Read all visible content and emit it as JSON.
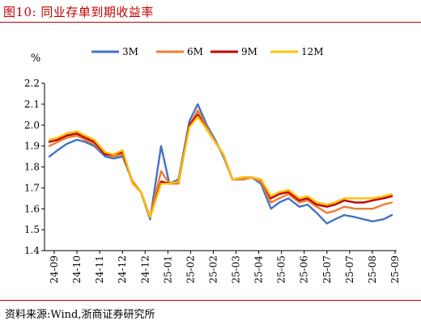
{
  "figure": {
    "title": "图10:  同业存单到期收益率",
    "source": "资料来源:Wind,浙商证券研究所"
  },
  "chart_data": {
    "type": "line",
    "title": "",
    "xlabel": "",
    "ylabel": "%",
    "ylim": [
      1.4,
      2.2
    ],
    "yticks": [
      "1.4",
      "1.5",
      "1.6",
      "1.7",
      "1.8",
      "1.9",
      "2.0",
      "2.1",
      "2.2"
    ],
    "xticks": [
      "24-09",
      "24-10",
      "24-11",
      "24-12",
      "24-12",
      "25-01",
      "25-02",
      "25-02",
      "25-03",
      "25-04",
      "25-05",
      "25-06",
      "25-07",
      "25-07",
      "25-08",
      "25-09"
    ],
    "grid": false,
    "legend": "top",
    "x": [
      "2024-09-01",
      "2024-09-10",
      "2024-09-20",
      "2024-10-01",
      "2024-10-10",
      "2024-10-20",
      "2024-11-01",
      "2024-11-10",
      "2024-11-20",
      "2024-12-01",
      "2024-12-10",
      "2024-12-20",
      "2025-01-01",
      "2025-01-10",
      "2025-01-20",
      "2025-02-01",
      "2025-02-10",
      "2025-02-20",
      "2025-03-01",
      "2025-03-10",
      "2025-03-20",
      "2025-04-01",
      "2025-04-10",
      "2025-04-20",
      "2025-05-01",
      "2025-05-10",
      "2025-05-20",
      "2025-06-01",
      "2025-06-10",
      "2025-06-20",
      "2025-07-01",
      "2025-07-10",
      "2025-07-20",
      "2025-08-01",
      "2025-08-10",
      "2025-08-20",
      "2025-09-01",
      "2025-09-10"
    ],
    "series": [
      {
        "name": "3M",
        "color": "#4472c4",
        "values": [
          1.85,
          1.88,
          1.91,
          1.93,
          1.92,
          1.9,
          1.85,
          1.84,
          1.85,
          1.73,
          1.68,
          1.55,
          1.9,
          1.72,
          1.74,
          2.02,
          2.1,
          2.0,
          1.93,
          1.85,
          1.74,
          1.74,
          1.75,
          1.72,
          1.6,
          1.63,
          1.65,
          1.61,
          1.62,
          1.58,
          1.53,
          1.55,
          1.57,
          1.56,
          1.55,
          1.54,
          1.55,
          1.57
        ]
      },
      {
        "name": "6M",
        "color": "#ed7d31",
        "values": [
          1.9,
          1.92,
          1.94,
          1.95,
          1.93,
          1.91,
          1.86,
          1.85,
          1.86,
          1.73,
          1.68,
          1.56,
          1.78,
          1.72,
          1.72,
          2.0,
          2.07,
          1.99,
          1.92,
          1.86,
          1.74,
          1.74,
          1.75,
          1.73,
          1.63,
          1.65,
          1.67,
          1.63,
          1.64,
          1.61,
          1.58,
          1.59,
          1.61,
          1.6,
          1.6,
          1.6,
          1.62,
          1.63
        ]
      },
      {
        "name": "9M",
        "color": "#c00000",
        "values": [
          1.92,
          1.93,
          1.95,
          1.96,
          1.94,
          1.92,
          1.86,
          1.86,
          1.87,
          1.72,
          1.68,
          1.56,
          1.73,
          1.72,
          1.73,
          2.0,
          2.05,
          1.98,
          1.92,
          1.86,
          1.74,
          1.75,
          1.75,
          1.74,
          1.65,
          1.67,
          1.68,
          1.64,
          1.65,
          1.62,
          1.61,
          1.62,
          1.64,
          1.63,
          1.63,
          1.64,
          1.65,
          1.66
        ]
      },
      {
        "name": "12M",
        "color": "#ffc000",
        "values": [
          1.93,
          1.94,
          1.96,
          1.97,
          1.95,
          1.93,
          1.87,
          1.86,
          1.88,
          1.72,
          1.68,
          1.56,
          1.72,
          1.72,
          1.73,
          1.99,
          2.04,
          1.98,
          1.92,
          1.86,
          1.74,
          1.75,
          1.75,
          1.74,
          1.66,
          1.68,
          1.69,
          1.65,
          1.66,
          1.63,
          1.62,
          1.63,
          1.65,
          1.65,
          1.65,
          1.65,
          1.66,
          1.67
        ]
      }
    ]
  }
}
